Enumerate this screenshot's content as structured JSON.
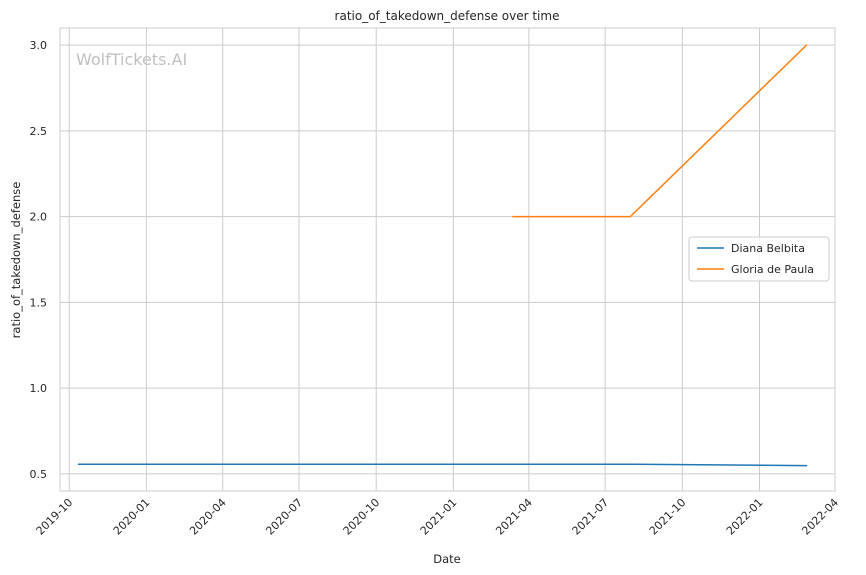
{
  "chart_data": {
    "type": "line",
    "title": "ratio_of_takedown_defense over time",
    "xlabel": "Date",
    "ylabel": "ratio_of_takedown_defense",
    "watermark": "WolfTickets.AI",
    "xlim": [
      "2019-09-20",
      "2022-04-01"
    ],
    "ylim": [
      0.4,
      3.1
    ],
    "x_ticks": [
      "2019-10",
      "2020-01",
      "2020-04",
      "2020-07",
      "2020-10",
      "2021-01",
      "2021-04",
      "2021-07",
      "2021-10",
      "2022-01",
      "2022-04"
    ],
    "y_ticks": [
      "0.5",
      "1.0",
      "1.5",
      "2.0",
      "2.5",
      "3.0"
    ],
    "grid": true,
    "legend_position": "center-right",
    "series": [
      {
        "name": "Diana Belbita",
        "color": "#1f77b4",
        "points": [
          {
            "x": "2019-10-12",
            "y": 0.556
          },
          {
            "x": "2021-07-31",
            "y": 0.556
          },
          {
            "x": "2022-02-26",
            "y": 0.548
          }
        ]
      },
      {
        "name": "Gloria de Paula",
        "color": "#ff7f0e",
        "points": [
          {
            "x": "2021-03-13",
            "y": 2.0
          },
          {
            "x": "2021-07-31",
            "y": 2.0
          },
          {
            "x": "2022-02-26",
            "y": 3.0
          }
        ]
      }
    ]
  }
}
